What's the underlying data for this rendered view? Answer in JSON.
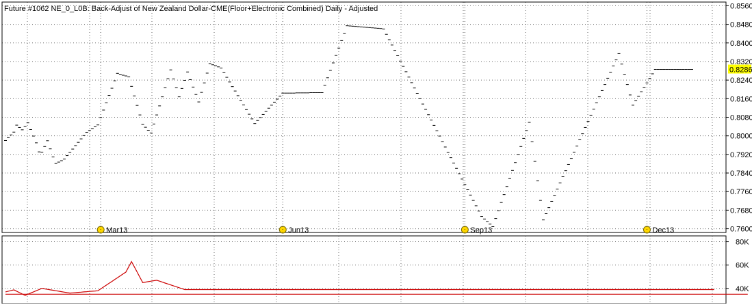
{
  "title": "Future #1062 NE_0_L0B: Back-Adjust of New Zealand Dollar-CME(Floor+Electronic Combined) Daily - Adjusted",
  "colors": {
    "background": "#ffffff",
    "price_marks": "#000000",
    "last_price_highlight": "#ffff00",
    "volume_line": "#cc0000",
    "grid": "#000000",
    "month_marker_fill": "#ffd700",
    "month_marker_stroke": "#7a6a00"
  },
  "chart_data": [
    {
      "type": "scatter",
      "name": "price-panel",
      "ylim": [
        0.7584,
        0.8576
      ],
      "y_ticks": [
        "0.8560",
        "0.8480",
        "0.8400",
        "0.8320",
        "0.8240",
        "0.8160",
        "0.8080",
        "0.8000",
        "0.7920",
        "0.7840",
        "0.7760",
        "0.7680",
        "0.7600"
      ],
      "last_value_label": "0.8286",
      "last_value": 0.8286,
      "month_markers": [
        {
          "label": "Mar13",
          "index": 34
        },
        {
          "label": "Jun13",
          "index": 99
        },
        {
          "label": "Sep13",
          "index": 164
        },
        {
          "label": "Dec13",
          "index": 229
        }
      ],
      "x_count": 257,
      "values": [
        0.798,
        0.7992,
        0.8004,
        0.8016,
        0.8046,
        0.8036,
        0.8026,
        0.8041,
        0.8056,
        0.8027,
        0.7999,
        0.797,
        0.7931,
        0.793,
        0.7954,
        0.7979,
        0.7944,
        0.7909,
        0.7881,
        0.7887,
        0.7893,
        0.79,
        0.7915,
        0.7929,
        0.7943,
        0.7958,
        0.7972,
        0.7987,
        0.8001,
        0.8015,
        0.8023,
        0.8031,
        0.8039,
        0.8047,
        0.8079,
        0.8111,
        0.8142,
        0.8174,
        0.8205,
        0.8237,
        0.8269,
        0.8265,
        0.8261,
        0.8258,
        0.8254,
        0.8213,
        0.8172,
        0.8131,
        0.809,
        0.8049,
        0.8037,
        0.8024,
        0.8012,
        0.8051,
        0.809,
        0.8129,
        0.8168,
        0.8207,
        0.8246,
        0.8284,
        0.8245,
        0.8207,
        0.8168,
        0.8204,
        0.8239,
        0.8275,
        0.8242,
        0.821,
        0.8178,
        0.8146,
        0.8187,
        0.8228,
        0.827,
        0.8311,
        0.8306,
        0.8302,
        0.8297,
        0.8292,
        0.8272,
        0.8252,
        0.8232,
        0.8212,
        0.8193,
        0.8173,
        0.8153,
        0.8133,
        0.8113,
        0.8093,
        0.8073,
        0.8053,
        0.8066,
        0.8079,
        0.8092,
        0.8105,
        0.8119,
        0.8132,
        0.8145,
        0.8158,
        0.8171,
        0.8184,
        0.8184,
        0.8184,
        0.8184,
        0.8184,
        0.8185,
        0.8185,
        0.8185,
        0.8185,
        0.8185,
        0.8186,
        0.8186,
        0.8186,
        0.8186,
        0.8186,
        0.8218,
        0.825,
        0.8282,
        0.8314,
        0.8346,
        0.8378,
        0.841,
        0.8442,
        0.8474,
        0.8473,
        0.8472,
        0.8471,
        0.847,
        0.8469,
        0.8468,
        0.8467,
        0.8466,
        0.8465,
        0.8464,
        0.8463,
        0.8462,
        0.846,
        0.8437,
        0.8414,
        0.8391,
        0.8368,
        0.8345,
        0.8322,
        0.8299,
        0.8276,
        0.8253,
        0.8229,
        0.8206,
        0.8183,
        0.816,
        0.8137,
        0.8114,
        0.8091,
        0.8068,
        0.8045,
        0.8022,
        0.7999,
        0.7975,
        0.7952,
        0.7929,
        0.7906,
        0.7883,
        0.786,
        0.7837,
        0.7814,
        0.7791,
        0.7768,
        0.7745,
        0.7722,
        0.7699,
        0.7676,
        0.7653,
        0.7642,
        0.7631,
        0.762,
        0.7609,
        0.7644,
        0.7678,
        0.7713,
        0.7747,
        0.7782,
        0.7816,
        0.7851,
        0.7885,
        0.792,
        0.7954,
        0.7989,
        0.8023,
        0.8058,
        0.7974,
        0.789,
        0.7806,
        0.7722,
        0.7638,
        0.7665,
        0.7691,
        0.7718,
        0.7744,
        0.7771,
        0.7797,
        0.7824,
        0.785,
        0.7877,
        0.7903,
        0.793,
        0.7956,
        0.7983,
        0.8009,
        0.8036,
        0.8062,
        0.8089,
        0.8115,
        0.8142,
        0.8168,
        0.8195,
        0.8221,
        0.8248,
        0.8274,
        0.8301,
        0.8327,
        0.8354,
        0.8309,
        0.8265,
        0.8221,
        0.8176,
        0.8132,
        0.8151,
        0.817,
        0.819,
        0.8209,
        0.8228,
        0.8247,
        0.8267,
        0.8286,
        0.8286,
        0.8286,
        0.8286,
        0.8286,
        0.8286,
        0.8286,
        0.8286,
        0.8286,
        0.8286,
        0.8286,
        0.8286,
        0.8286,
        0.8286
      ]
    },
    {
      "type": "line",
      "name": "volume-panel",
      "ylim": [
        27000,
        85000
      ],
      "y_ticks": [
        "80K",
        "60K",
        "40K"
      ],
      "x_count": 257,
      "values": [
        37000,
        37600,
        38200,
        38800,
        37600,
        36400,
        35200,
        34000,
        35000,
        36000,
        37000,
        38000,
        39000,
        40000,
        39600,
        39200,
        38800,
        38400,
        38000,
        37600,
        37200,
        36800,
        36400,
        36000,
        36200,
        36400,
        36600,
        36800,
        37000,
        37200,
        37400,
        37600,
        37800,
        38000,
        39600,
        41200,
        42800,
        44400,
        46000,
        47600,
        49200,
        50800,
        52400,
        54000,
        58500,
        63000,
        58500,
        54000,
        49500,
        45000,
        45400,
        45800,
        46200,
        46600,
        47000,
        46200,
        45400,
        44600,
        43800,
        43000,
        42200,
        41400,
        40600,
        39800,
        39000,
        39000,
        39000,
        39000,
        39000,
        39000,
        39000,
        39000,
        39000,
        39000,
        39000,
        39000,
        39000,
        39000,
        39000,
        39000,
        39000,
        39000,
        39000,
        39000,
        39000,
        39000,
        39000,
        39000,
        39000,
        39000,
        39000,
        39000,
        39000,
        39000,
        39000,
        39000,
        39000,
        39000,
        39000,
        39000,
        39000,
        39000,
        39000,
        39000,
        39000,
        39000,
        39000,
        39000,
        39000,
        39000,
        39000,
        39000,
        39000,
        39000,
        39000,
        39000,
        39000,
        39000,
        39000,
        39000,
        39000,
        39000,
        39000,
        39000,
        39000,
        39000,
        39000,
        39000,
        39000,
        39000,
        39000,
        39000,
        39000,
        39000,
        39000,
        39000,
        39000,
        39000,
        39000,
        39000,
        39000,
        39000,
        39000,
        39000,
        39000,
        39000,
        39000,
        39000,
        39000,
        39000,
        39000,
        39000,
        39000,
        39000,
        39000,
        39000,
        39000,
        39000,
        39000,
        39000,
        39000,
        39000,
        39000,
        39000,
        39000,
        39000,
        39000,
        39000,
        39000,
        39000,
        39000,
        39000,
        39000,
        39000,
        39000,
        39000,
        39000,
        39000,
        39000,
        39000,
        39000,
        39000,
        39000,
        39000,
        39000,
        39000,
        39000,
        39000,
        39000,
        39000,
        39000,
        39000,
        39000,
        39000,
        39000,
        39000,
        39000,
        39000,
        39000,
        39000,
        39000,
        39000,
        39000,
        39000,
        39000,
        39000,
        39000,
        39000,
        39000,
        39000,
        39000,
        39000,
        39000,
        39000,
        39000,
        39000,
        39000,
        39000,
        39000,
        39000,
        39000,
        39000,
        39000,
        39000,
        39000,
        39000,
        39000,
        39000,
        39000,
        39000,
        39000,
        39000,
        39000,
        39000,
        39000,
        39000,
        39000,
        39000,
        39000,
        39000,
        39000,
        39000,
        39000,
        39000,
        39000,
        39000,
        39000,
        39000,
        39000,
        39000,
        39000,
        39000,
        39000,
        39000
      ]
    },
    {
      "type": "line",
      "name": "volume-panel-secondary",
      "ylim": [
        27000,
        85000
      ],
      "x_count": 257,
      "values": [
        35000,
        35000,
        35000,
        35000,
        35000,
        35000,
        35000,
        35000,
        35000,
        35000,
        35000,
        35000,
        35000,
        35000,
        35000,
        35000,
        35000,
        35000,
        35000,
        35000,
        35000,
        35000,
        35000,
        35000,
        35000,
        35000,
        35000,
        35000,
        35000,
        35000,
        35000,
        35000,
        35000,
        35000,
        35000,
        35000,
        35000,
        35000,
        35000,
        35000,
        35000,
        35000,
        35000,
        35000,
        35000,
        35000,
        35000,
        35000,
        35000,
        35000,
        35000,
        35000,
        35000,
        35000,
        35000,
        35000,
        35000,
        35000,
        35000,
        35000,
        35000,
        35000,
        35000,
        35000,
        35000,
        35000,
        35000,
        35000,
        35000,
        35000,
        35000,
        35000,
        35000,
        35000,
        35000,
        35000,
        35000,
        35000,
        35000,
        35000,
        35000,
        35000,
        35000,
        35000,
        35000,
        35000,
        35000,
        35000,
        35000,
        35000,
        35000,
        35000,
        35000,
        35000,
        35000,
        35000,
        35000,
        35000,
        35000,
        35000,
        35000,
        35000,
        35000,
        35000,
        35000,
        35000,
        35000,
        35000,
        35000,
        35000,
        35000,
        35000,
        35000,
        35000,
        35000,
        35000,
        35000,
        35000,
        35000,
        35000,
        35000,
        35000,
        35000,
        35000,
        35000,
        35000,
        35000,
        35000,
        35000,
        35000,
        35000,
        35000,
        35000,
        35000,
        35000,
        35000,
        35000,
        35000,
        35000,
        35000,
        35000,
        35000,
        35000,
        35000,
        35000,
        35000,
        35000,
        35000,
        35000,
        35000,
        35000,
        35000,
        35000,
        35000,
        35000,
        35000,
        35000,
        35000,
        35000,
        35000,
        35000,
        35000,
        35000,
        35000,
        35000,
        35000,
        35000,
        35000,
        35000,
        35000,
        35000,
        35000,
        35000,
        35000,
        35000,
        35000,
        35000,
        35000,
        35000,
        35000,
        35000,
        35000,
        35000,
        35000,
        35000,
        35000,
        35000,
        35000,
        35000,
        35000,
        35000,
        35000,
        35000,
        35000,
        35000,
        35000,
        35000,
        35000,
        35000,
        35000,
        35000,
        35000,
        35000,
        35000,
        35000,
        35000,
        35000,
        35000,
        35000,
        35000,
        35000,
        35000,
        35000,
        35000,
        35000,
        35000,
        35000,
        35000,
        35000,
        35000,
        35000,
        35000,
        35000,
        35000,
        35000,
        35000,
        35000,
        35000,
        35000,
        35000,
        35000,
        35000,
        35000,
        35000,
        35000,
        35000,
        35000,
        35000,
        35000,
        35000,
        35000,
        35000,
        35000,
        35000,
        35000,
        35000,
        35000,
        35000,
        35000,
        35000,
        35000,
        35000,
        35000,
        35000,
        35000,
        35000,
        35000,
        35000,
        35000,
        35000,
        35000,
        35000,
        35000,
        35000,
        35000,
        35000
      ]
    }
  ]
}
